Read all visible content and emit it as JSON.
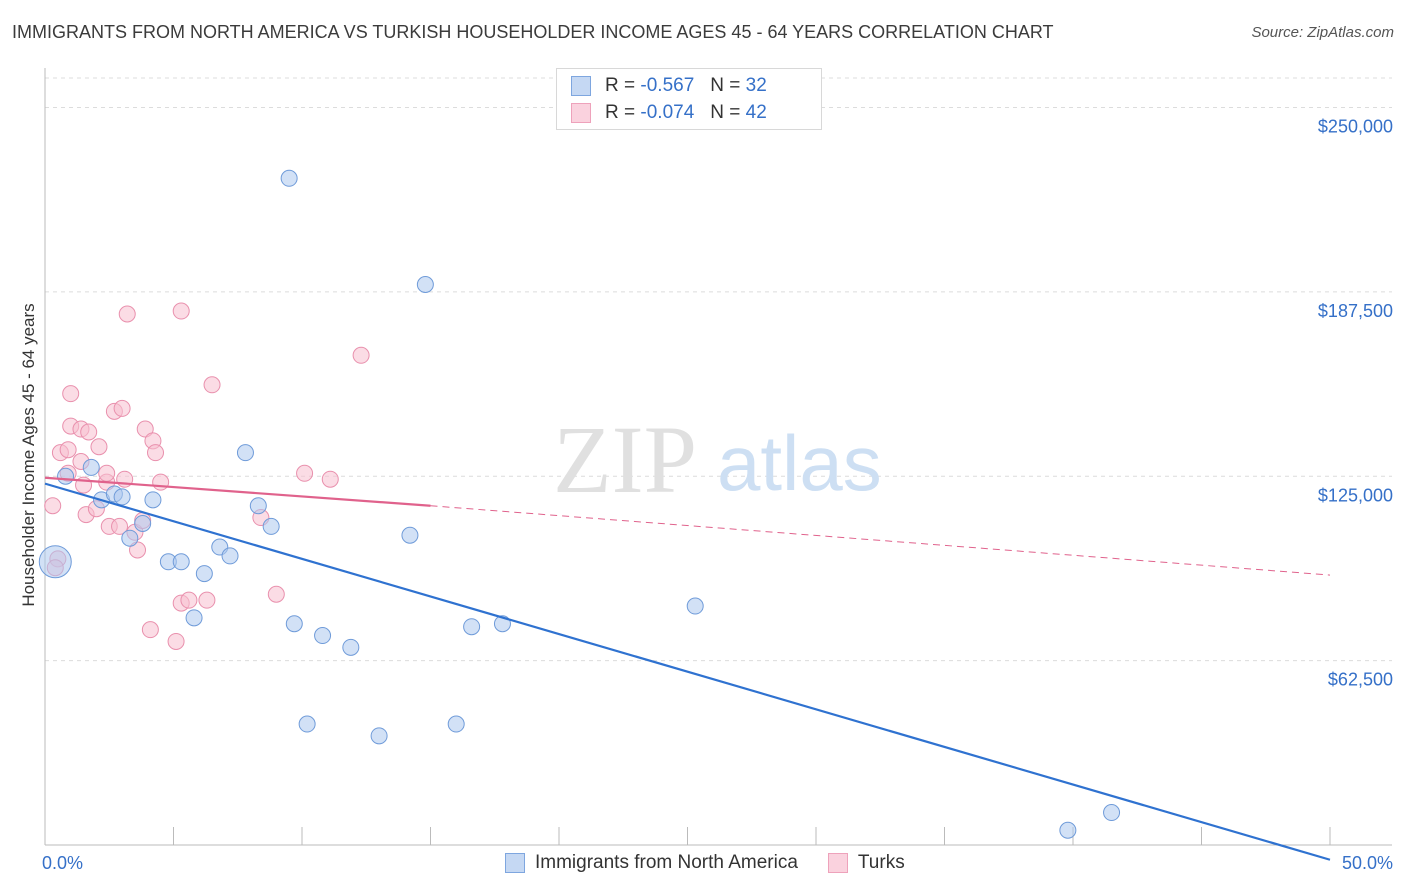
{
  "title": "IMMIGRANTS FROM NORTH AMERICA VS TURKISH HOUSEHOLDER INCOME AGES 45 - 64 YEARS CORRELATION CHART",
  "source": "Source: ZipAtlas.com",
  "watermark": {
    "zip": "ZIP",
    "atlas": "atlas"
  },
  "legend_top": [
    {
      "r_label": "R =",
      "r_value": "-0.567",
      "n_label": "N =",
      "n_value": "32"
    },
    {
      "r_label": "R =",
      "r_value": "-0.074",
      "n_label": "N =",
      "n_value": "42"
    }
  ],
  "colors": {
    "blue_fill": "#adc8ef",
    "blue_stroke": "#6f9bd9",
    "blue_line": "#2f72d0",
    "pink_fill": "#f7bfd0",
    "pink_stroke": "#e990ad",
    "pink_line": "#e0628c",
    "axis_text": "#3570c8",
    "grid": "#dcdcdc"
  },
  "chart_data": {
    "type": "scatter",
    "title": "IMMIGRANTS FROM NORTH AMERICA VS TURKISH HOUSEHOLDER INCOME AGES 45 - 64 YEARS CORRELATION CHART",
    "xlabel": "",
    "ylabel": "Householder Income Ages 45 - 64 years",
    "xlim": [
      0,
      50
    ],
    "ylim": [
      0,
      260000
    ],
    "x_tick_labels": [
      "0.0%",
      "50.0%"
    ],
    "y_ticks": [
      62500,
      125000,
      187500,
      250000
    ],
    "y_tick_labels": [
      "$62,500",
      "$125,000",
      "$187,500",
      "$250,000"
    ],
    "series": [
      {
        "name": "Immigrants from North America",
        "color": "blue",
        "r": -0.567,
        "n": 32,
        "points": [
          {
            "x": 0.4,
            "y": 96000,
            "big": true
          },
          {
            "x": 0.8,
            "y": 125000
          },
          {
            "x": 1.8,
            "y": 128000
          },
          {
            "x": 2.2,
            "y": 117000
          },
          {
            "x": 2.7,
            "y": 119000
          },
          {
            "x": 3.3,
            "y": 104000
          },
          {
            "x": 3.8,
            "y": 109000
          },
          {
            "x": 4.2,
            "y": 117000
          },
          {
            "x": 4.8,
            "y": 96000
          },
          {
            "x": 5.3,
            "y": 96000
          },
          {
            "x": 5.8,
            "y": 77000
          },
          {
            "x": 6.2,
            "y": 92000
          },
          {
            "x": 6.8,
            "y": 101000
          },
          {
            "x": 7.2,
            "y": 98000
          },
          {
            "x": 7.8,
            "y": 133000
          },
          {
            "x": 8.3,
            "y": 115000
          },
          {
            "x": 8.8,
            "y": 108000
          },
          {
            "x": 9.5,
            "y": 226000
          },
          {
            "x": 9.7,
            "y": 75000
          },
          {
            "x": 10.2,
            "y": 41000
          },
          {
            "x": 10.8,
            "y": 71000
          },
          {
            "x": 11.9,
            "y": 67000
          },
          {
            "x": 13.0,
            "y": 37000
          },
          {
            "x": 14.2,
            "y": 105000
          },
          {
            "x": 14.8,
            "y": 190000
          },
          {
            "x": 16.0,
            "y": 41000
          },
          {
            "x": 16.6,
            "y": 74000
          },
          {
            "x": 17.8,
            "y": 75000
          },
          {
            "x": 25.3,
            "y": 81000
          },
          {
            "x": 39.8,
            "y": 5000
          },
          {
            "x": 41.5,
            "y": 11000
          },
          {
            "x": 3.0,
            "y": 118000
          }
        ],
        "trend": {
          "x1": 0,
          "y1": 122500,
          "x2": 50,
          "y2": -5000
        }
      },
      {
        "name": "Turks",
        "color": "pink",
        "r": -0.074,
        "n": 42,
        "points": [
          {
            "x": 0.3,
            "y": 115000
          },
          {
            "x": 0.5,
            "y": 97000
          },
          {
            "x": 0.6,
            "y": 133000
          },
          {
            "x": 0.9,
            "y": 134000
          },
          {
            "x": 0.9,
            "y": 126000
          },
          {
            "x": 1.0,
            "y": 153000
          },
          {
            "x": 1.0,
            "y": 142000
          },
          {
            "x": 1.4,
            "y": 130000
          },
          {
            "x": 1.5,
            "y": 122000
          },
          {
            "x": 1.4,
            "y": 141000
          },
          {
            "x": 1.6,
            "y": 112000
          },
          {
            "x": 1.7,
            "y": 140000
          },
          {
            "x": 2.0,
            "y": 114000
          },
          {
            "x": 2.1,
            "y": 135000
          },
          {
            "x": 2.4,
            "y": 123000
          },
          {
            "x": 2.4,
            "y": 126000
          },
          {
            "x": 2.5,
            "y": 108000
          },
          {
            "x": 2.7,
            "y": 147000
          },
          {
            "x": 2.9,
            "y": 108000
          },
          {
            "x": 3.0,
            "y": 148000
          },
          {
            "x": 3.1,
            "y": 124000
          },
          {
            "x": 3.2,
            "y": 180000
          },
          {
            "x": 3.5,
            "y": 106000
          },
          {
            "x": 3.6,
            "y": 100000
          },
          {
            "x": 3.8,
            "y": 110000
          },
          {
            "x": 3.9,
            "y": 141000
          },
          {
            "x": 4.2,
            "y": 137000
          },
          {
            "x": 4.3,
            "y": 133000
          },
          {
            "x": 4.1,
            "y": 73000
          },
          {
            "x": 4.5,
            "y": 123000
          },
          {
            "x": 5.1,
            "y": 69000
          },
          {
            "x": 5.3,
            "y": 82000
          },
          {
            "x": 5.3,
            "y": 181000
          },
          {
            "x": 5.6,
            "y": 83000
          },
          {
            "x": 6.3,
            "y": 83000
          },
          {
            "x": 6.5,
            "y": 156000
          },
          {
            "x": 8.4,
            "y": 111000
          },
          {
            "x": 9.0,
            "y": 85000
          },
          {
            "x": 10.1,
            "y": 126000
          },
          {
            "x": 11.1,
            "y": 124000
          },
          {
            "x": 12.3,
            "y": 166000
          },
          {
            "x": 0.4,
            "y": 94000
          }
        ],
        "trend_solid": {
          "x1": 0,
          "y1": 124500,
          "x2": 15,
          "y2": 115000
        },
        "trend_dashed": {
          "x1": 15,
          "y1": 115000,
          "x2": 50,
          "y2": 91500
        }
      }
    ],
    "legend": [
      "Immigrants from North America",
      "Turks"
    ]
  }
}
